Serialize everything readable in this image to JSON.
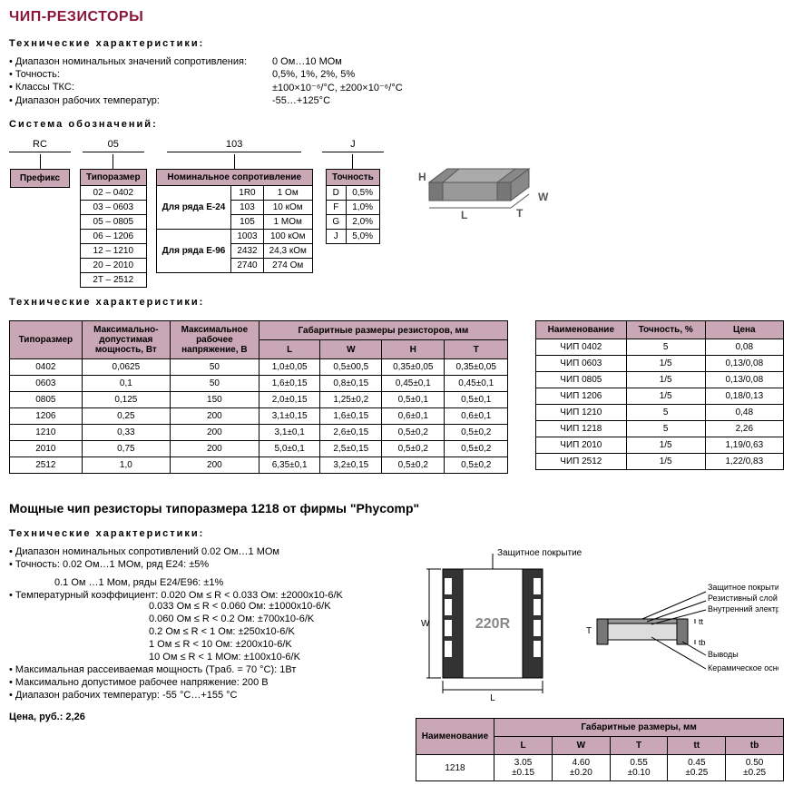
{
  "title": "ЧИП-РЕЗИСТОРЫ",
  "tech_header": "Технические  характеристики:",
  "specs1": [
    {
      "label": "Диапазон номинальных значений сопротивления:",
      "value": "0 Ом…10 MОм"
    },
    {
      "label": "Точность:",
      "value": "0,5%, 1%, 2%, 5%"
    },
    {
      "label": " Классы ТКС:",
      "value": "±100×10⁻⁶/°C, ±200×10⁻⁶/°C"
    },
    {
      "label": "Диапазон рабочих температур:",
      "value": "-55…+125°C"
    }
  ],
  "desig_header": "Система обозначений:",
  "desig": {
    "c1": {
      "code": "RC",
      "label": "Префикс"
    },
    "c2": {
      "code": "05",
      "label": "Типоразмер",
      "rows": [
        "02 – 0402",
        "03 – 0603",
        "05 – 0805",
        "06 – 1206",
        "12 – 1210",
        "20 – 2010",
        "2T – 2512"
      ]
    },
    "c3": {
      "code": "103",
      "label": "Номинальное сопротивление",
      "g1_label": "Для ряда E-24",
      "g1": [
        [
          "1R0",
          "1 Ом"
        ],
        [
          "103",
          "10 кОм"
        ],
        [
          "105",
          "1 МОм"
        ]
      ],
      "g2_label": "Для ряда E-96",
      "g2": [
        [
          "1003",
          "100 кОм"
        ],
        [
          "2432",
          "24,3 кОм"
        ],
        [
          "2740",
          "274 Ом"
        ]
      ]
    },
    "c4": {
      "code": "J",
      "label": "Точность",
      "rows": [
        [
          "D",
          "0,5%"
        ],
        [
          "F",
          "1,0%"
        ],
        [
          "G",
          "2,0%"
        ],
        [
          "J",
          "5,0%"
        ]
      ]
    }
  },
  "tech2_header": "Технические характеристики:",
  "spec_table": {
    "headers": {
      "size": "Типоразмер",
      "power": "Максимально-допустимая мощность, Вт",
      "volt": "Максимальное рабочее напряжение, В",
      "dims": "Габаритные размеры резисторов, мм",
      "L": "L",
      "W": "W",
      "H": "H",
      "T": "T"
    },
    "rows": [
      [
        "0402",
        "0,0625",
        "50",
        "1,0±0,05",
        "0,5±00,5",
        "0,35±0,05",
        "0,35±0,05"
      ],
      [
        "0603",
        "0,1",
        "50",
        "1,6±0,15",
        "0,8±0,15",
        "0,45±0,1",
        "0,45±0,1"
      ],
      [
        "0805",
        "0,125",
        "150",
        "2,0±0,15",
        "1,25±0,2",
        "0,5±0,1",
        "0,5±0,1"
      ],
      [
        "1206",
        "0,25",
        "200",
        "3,1±0,15",
        "1,6±0,15",
        "0,6±0,1",
        "0,6±0,1"
      ],
      [
        "1210",
        "0,33",
        "200",
        "3,1±0,1",
        "2,6±0,15",
        "0,5±0,2",
        "0,5±0,2"
      ],
      [
        "2010",
        "0,75",
        "200",
        "5,0±0,1",
        "2,5±0,15",
        "0,5±0,2",
        "0,5±0,2"
      ],
      [
        "2512",
        "1,0",
        "200",
        "6,35±0,1",
        "3,2±0,15",
        "0,5±0,2",
        "0,5±0,2"
      ]
    ]
  },
  "price_table": {
    "headers": {
      "name": "Наименование",
      "tol": "Точность, %",
      "price": "Цена"
    },
    "rows": [
      [
        "ЧИП 0402",
        "5",
        "0,08"
      ],
      [
        "ЧИП 0603",
        "1/5",
        "0,13/0,08"
      ],
      [
        "ЧИП 0805",
        "1/5",
        "0,13/0,08"
      ],
      [
        "ЧИП 1206",
        "1/5",
        "0,18/0,13"
      ],
      [
        "ЧИП 1210",
        "5",
        "0,48"
      ],
      [
        "ЧИП 1218",
        "5",
        "2,26"
      ],
      [
        "ЧИП 2010",
        "1/5",
        "1,19/0,63"
      ],
      [
        "ЧИП 2512",
        "1/5",
        "1,22/0,83"
      ]
    ]
  },
  "phycomp": {
    "title": "Мощные чип резисторы типоразмера 1218 от фирмы  \"Phycomp\"",
    "tech_header": "Технические  характеристики:",
    "lines": [
      "Диапазон номинальных сопротивлений 0.02 Ом…1 MОм",
      "Точность: 0.02 Ом…1 МОм, ряд E24: ±5%"
    ],
    "lines_indent1": "0.1 Ом …1 Mом, ряды E24/E96: ±1%",
    "tk_label": "Температурный коэффициент:",
    "tk": [
      "0.020 Ом ≤ R < 0.033 Ом: ±2000x10-6/K",
      "0.033 Ом ≤ R < 0.060 Ом: ±1000x10-6/K",
      "0.060 Ом ≤ R < 0.2 Ом: ±700x10-6/K",
      "0.2 Ом ≤ R <  1 Ом: ±250x10-6/K",
      "1 Ом ≤ R < 10 Ом: ±200x10-6/K",
      "10 Ом ≤ R < 1 МОм: ±100x10-6/K"
    ],
    "lines2": [
      "Максимальная рассеиваемая мощность (Tраб. = 70 °C): 1Вт",
      "Максимально допустимое рабочее напряжение: 200 В",
      "Диапазон рабочих температур: -55 °C…+155 °C"
    ],
    "price_label": "Цена, руб.: 2,26",
    "diagram_labels": {
      "top": "Защитное покрытие",
      "r1": "Защитное покрытие",
      "r2": "Резистивный слой",
      "r3": "Внутренний электрод",
      "r4": "Выводы",
      "r5": "Керамическое основание",
      "chip": "220R"
    },
    "dim_table": {
      "headers": {
        "name": "Наименование",
        "dims": "Габаритные размеры, мм",
        "L": "L",
        "W": "W",
        "T": "T",
        "tt": "tt",
        "tb": "tb"
      },
      "row": [
        "1218",
        "3.05 ±0.15",
        "4.60 ±0.20",
        "0.55 ±0.10",
        "0.45 ±0.25",
        "0.50 ±0.25"
      ]
    }
  },
  "colors": {
    "header_bg": "#c9a7b5",
    "accent": "#8b1538"
  }
}
